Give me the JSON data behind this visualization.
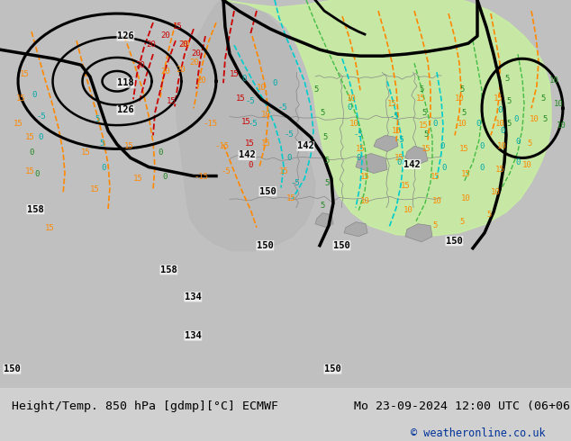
{
  "title_left": "Height/Temp. 850 hPa [gdmp][°C] ECMWF",
  "title_right": "Mo 23-09-2024 12:00 UTC (06+06)",
  "copyright": "© weatheronline.co.uk",
  "bg_color": "#d0d0d0",
  "map_bg": "#c8c8c8",
  "green_fill": "#c8f0a0",
  "footer_bg": "#ffffff",
  "title_color": "#000000",
  "copyright_color": "#003399",
  "figsize": [
    6.34,
    4.9
  ],
  "dpi": 100
}
